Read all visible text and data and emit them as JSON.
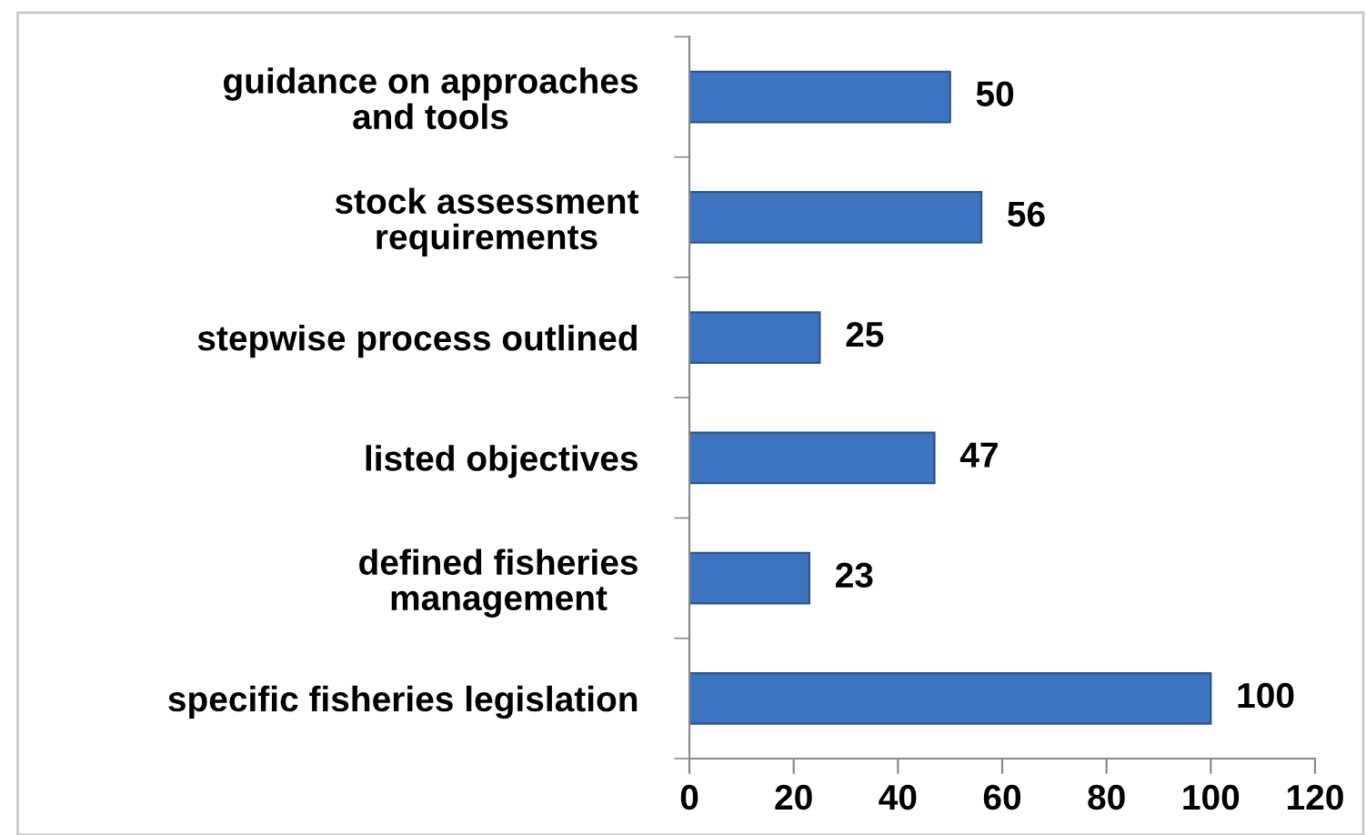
{
  "chart_data": {
    "type": "bar",
    "orientation": "horizontal",
    "categories": [
      "guidance on approaches\nand tools",
      "stock assessment\nrequirements",
      "stepwise process outlined",
      "listed objectives",
      "defined fisheries\nmanagement",
      "specific fisheries legislation"
    ],
    "values": [
      50,
      56,
      25,
      47,
      23,
      100
    ],
    "color": "#3c74bf",
    "xlim": [
      0,
      120
    ],
    "xticks": [
      0,
      20,
      40,
      60,
      80,
      100,
      120
    ],
    "grid": false,
    "data_labels": true,
    "legend": false
  }
}
